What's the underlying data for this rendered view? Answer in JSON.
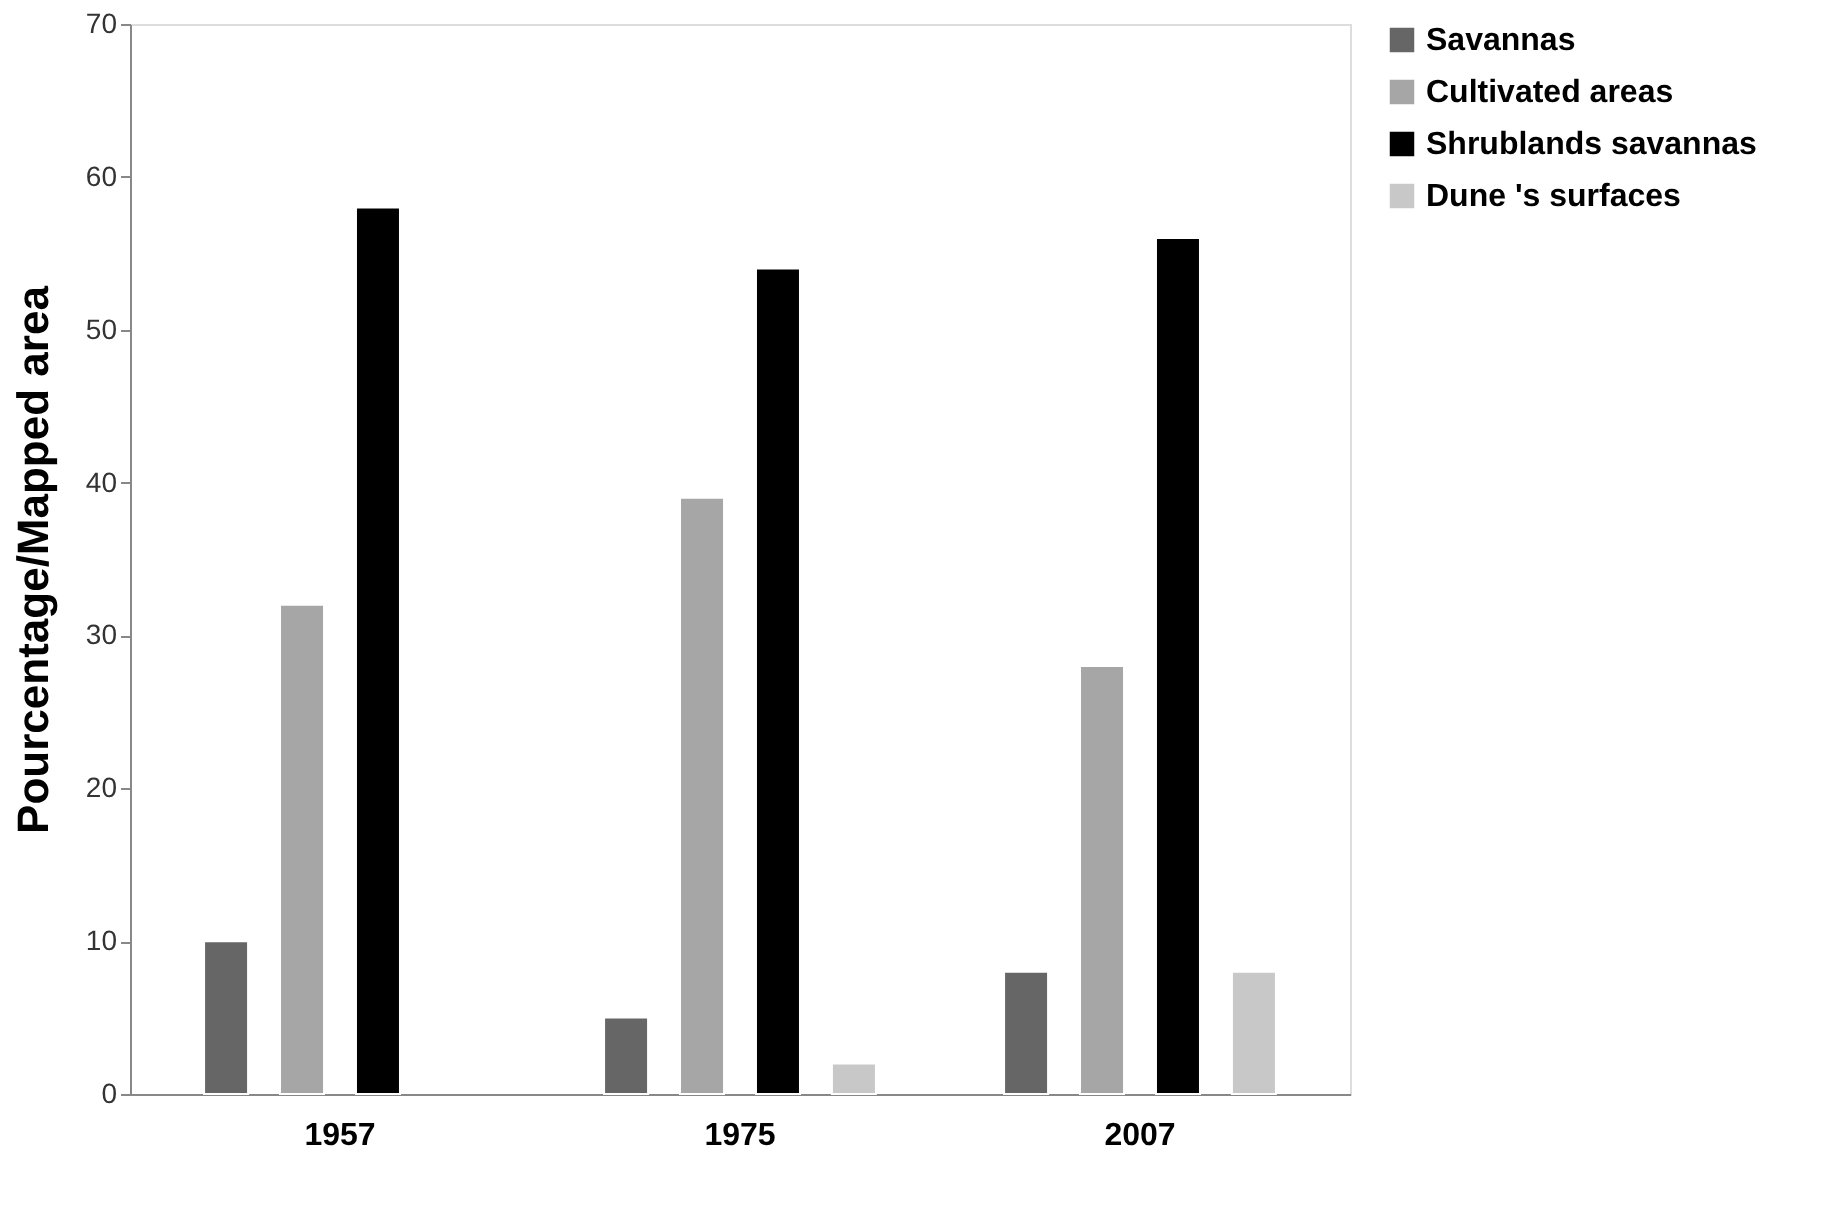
{
  "chart_data": {
    "type": "bar",
    "ylabel": "Pourcentage/Mapped area",
    "categories": [
      "1957",
      "1975",
      "2007"
    ],
    "series": [
      {
        "name": "Savannas",
        "color": "#666666",
        "values": [
          10,
          5,
          8
        ]
      },
      {
        "name": "Cultivated areas",
        "color": "#a6a6a6",
        "values": [
          32,
          39,
          28
        ]
      },
      {
        "name": "Shrublands savannas",
        "color": "#000000",
        "values": [
          58,
          54,
          56
        ]
      },
      {
        "name": "Dune 's surfaces",
        "color": "#c8c8c8",
        "values": [
          null,
          2,
          8
        ]
      }
    ],
    "ylim": [
      0,
      70
    ],
    "yticks": [
      0,
      10,
      20,
      30,
      40,
      50,
      60,
      70
    ],
    "grid": false,
    "legend": "right"
  }
}
